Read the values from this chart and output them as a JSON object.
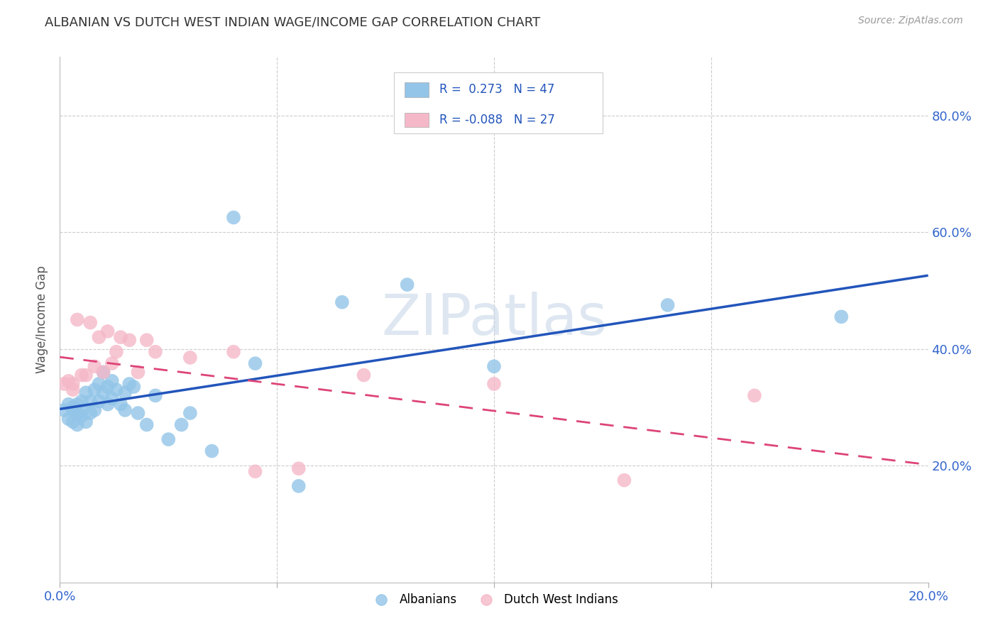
{
  "title": "ALBANIAN VS DUTCH WEST INDIAN WAGE/INCOME GAP CORRELATION CHART",
  "source": "Source: ZipAtlas.com",
  "ylabel": "Wage/Income Gap",
  "legend_labels": [
    "Albanians",
    "Dutch West Indians"
  ],
  "albanian_color": "#92C5E8",
  "dutch_color": "#F5B8C8",
  "albanian_line_color": "#2255BB",
  "dutch_line_color": "#DD4477",
  "albanian_x": [
    0.001,
    0.002,
    0.002,
    0.003,
    0.003,
    0.003,
    0.004,
    0.004,
    0.004,
    0.005,
    0.005,
    0.005,
    0.006,
    0.006,
    0.007,
    0.007,
    0.008,
    0.008,
    0.009,
    0.009,
    0.01,
    0.01,
    0.011,
    0.011,
    0.012,
    0.012,
    0.013,
    0.014,
    0.015,
    0.015,
    0.016,
    0.017,
    0.018,
    0.02,
    0.022,
    0.025,
    0.028,
    0.03,
    0.035,
    0.04,
    0.045,
    0.055,
    0.065,
    0.08,
    0.1,
    0.14,
    0.18
  ],
  "albanian_y": [
    0.295,
    0.305,
    0.28,
    0.3,
    0.295,
    0.275,
    0.29,
    0.27,
    0.305,
    0.31,
    0.285,
    0.295,
    0.325,
    0.275,
    0.31,
    0.29,
    0.33,
    0.295,
    0.34,
    0.31,
    0.325,
    0.36,
    0.335,
    0.305,
    0.345,
    0.315,
    0.33,
    0.305,
    0.295,
    0.325,
    0.34,
    0.335,
    0.29,
    0.27,
    0.32,
    0.245,
    0.27,
    0.29,
    0.225,
    0.625,
    0.375,
    0.165,
    0.48,
    0.51,
    0.37,
    0.475,
    0.455
  ],
  "dutch_x": [
    0.001,
    0.002,
    0.003,
    0.003,
    0.004,
    0.005,
    0.006,
    0.007,
    0.008,
    0.009,
    0.01,
    0.011,
    0.012,
    0.013,
    0.014,
    0.016,
    0.018,
    0.02,
    0.022,
    0.03,
    0.04,
    0.045,
    0.055,
    0.07,
    0.1,
    0.13,
    0.16
  ],
  "dutch_y": [
    0.34,
    0.345,
    0.33,
    0.34,
    0.45,
    0.355,
    0.355,
    0.445,
    0.37,
    0.42,
    0.36,
    0.43,
    0.375,
    0.395,
    0.42,
    0.415,
    0.36,
    0.415,
    0.395,
    0.385,
    0.395,
    0.19,
    0.195,
    0.355,
    0.34,
    0.175,
    0.32
  ],
  "xlim": [
    0.0,
    0.2
  ],
  "ylim": [
    0.0,
    0.9
  ],
  "xticks": [
    0.0,
    0.05,
    0.1,
    0.15,
    0.2
  ],
  "xtick_labels": [
    "0.0%",
    "",
    "",
    "",
    "20.0%"
  ],
  "yticks_right": [
    0.2,
    0.4,
    0.6,
    0.8
  ],
  "ytick_labels_right": [
    "20.0%",
    "40.0%",
    "60.0%",
    "80.0%"
  ],
  "watermark_text": "ZIPatlas",
  "watermark_color": "#c8d8e8",
  "background_color": "#ffffff",
  "grid_color": "#cccccc",
  "r_text_1": "R =  0.273   N = 47",
  "r_text_2": "R = -0.088   N = 27"
}
